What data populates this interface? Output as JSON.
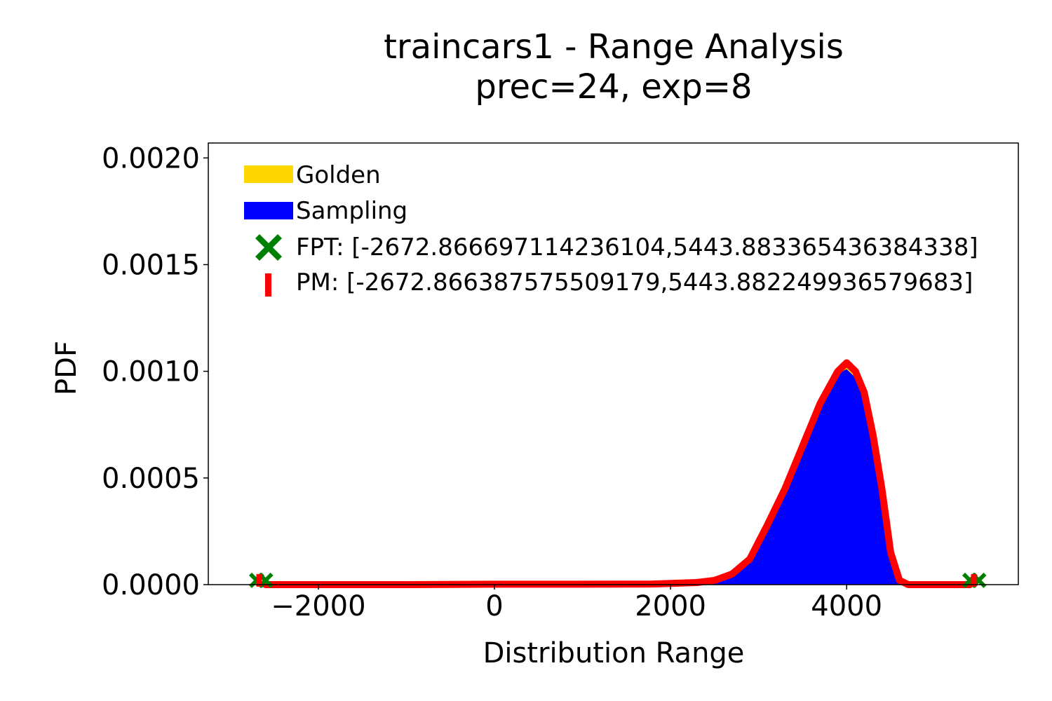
{
  "chart_data": {
    "type": "area",
    "title": "traincars1 - Range Analysis",
    "subtitle": "prec=24, exp=8",
    "xlabel": "Distribution Range",
    "ylabel": "PDF",
    "xlim": [
      -3250,
      5950
    ],
    "ylim": [
      0,
      0.00207
    ],
    "xticks": [
      -2000,
      0,
      2000,
      4000
    ],
    "xtick_labels": [
      "−2000",
      "0",
      "2000",
      "4000"
    ],
    "yticks": [
      0,
      0.0005,
      0.001,
      0.0015,
      0.002
    ],
    "ytick_labels": [
      "0.0000",
      "0.0005",
      "0.0010",
      "0.0015",
      "0.0020"
    ],
    "grid": false,
    "legend_position": "top-left",
    "legend": [
      {
        "label": "Golden",
        "kind": "patch",
        "color": "#ffd700"
      },
      {
        "label": "Sampling",
        "kind": "patch",
        "color": "#0000ff"
      },
      {
        "label": "FPT: [-2672.86669711423610​4,5443.883365436384338]",
        "kind": "x-marker",
        "color": "#008000"
      },
      {
        "label": "PM: [-2672.866387575509179,5443.882249936579683]",
        "kind": "bar-marker",
        "color": "#ff0000"
      }
    ],
    "series": [
      {
        "name": "Golden",
        "kind": "area",
        "color": "#ffd700",
        "x": [
          2300,
          2500,
          2700,
          2900,
          3100,
          3300,
          3500,
          3700,
          3900,
          4000,
          4100,
          4200,
          4300,
          4400,
          4500,
          4600,
          4700
        ],
        "y": [
          0,
          2e-05,
          5e-05,
          0.00012,
          0.00028,
          0.00045,
          0.00065,
          0.00085,
          0.001,
          0.00104,
          0.001,
          0.0009,
          0.0007,
          0.00045,
          0.00015,
          2e-05,
          0
        ]
      },
      {
        "name": "Sampling",
        "kind": "area",
        "color": "#0000ff",
        "x": [
          2300,
          2500,
          2700,
          2900,
          3100,
          3300,
          3500,
          3700,
          3900,
          4000,
          4100,
          4200,
          4300,
          4400,
          4500,
          4600,
          4700
        ],
        "y": [
          0,
          2e-05,
          5e-05,
          0.00012,
          0.00027,
          0.00044,
          0.00064,
          0.00084,
          0.00099,
          0.00101,
          0.00097,
          0.00087,
          0.00068,
          0.00043,
          0.00014,
          2e-05,
          0
        ]
      },
      {
        "name": "density-curve",
        "kind": "line",
        "color": "#ff0000",
        "x": [
          -2600,
          -2000,
          -1000,
          0,
          1000,
          1800,
          2300,
          2500,
          2700,
          2900,
          3100,
          3300,
          3500,
          3700,
          3900,
          4000,
          4100,
          4200,
          4300,
          4400,
          4500,
          4600,
          4700,
          5400
        ],
        "y": [
          0,
          0,
          0,
          2e-06,
          2e-06,
          3e-06,
          1e-05,
          2e-05,
          5e-05,
          0.00012,
          0.00028,
          0.00045,
          0.00065,
          0.00085,
          0.001,
          0.00104,
          0.001,
          0.0009,
          0.0007,
          0.00045,
          0.00015,
          2e-05,
          0,
          0
        ]
      }
    ],
    "markers": {
      "fpt": {
        "color": "#008000",
        "points": [
          [
            -2700,
            2e-05
          ],
          [
            -2600,
            2e-05
          ],
          [
            5400,
            2e-05
          ],
          [
            5500,
            2e-05
          ]
        ]
      },
      "pm": {
        "color": "#ff0000",
        "points": [
          [
            -2672.87,
            2e-05
          ],
          [
            5443.88,
            2e-05
          ]
        ]
      }
    }
  }
}
